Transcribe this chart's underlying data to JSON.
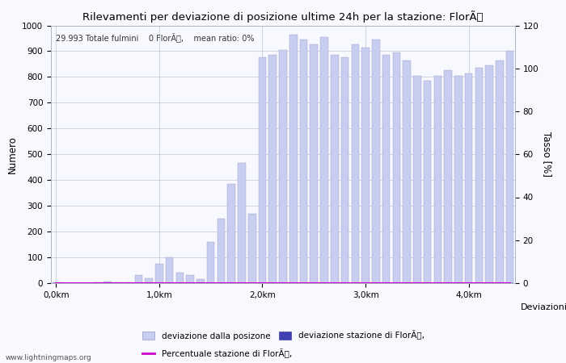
{
  "title": "Rilevamenti per deviazione di posizione ultime 24h per la stazione: FlorÃ",
  "subtitle": "29.993 Totale fulmini    0 FlorÃ,    mean ratio: 0%",
  "ylabel_left": "Numero",
  "ylabel_right": "Tasso [%]",
  "xlabel": "Deviazioni",
  "watermark": "www.lightningmaps.org",
  "ylim_left": [
    0,
    1000
  ],
  "ylim_right": [
    0,
    120
  ],
  "xtick_positions": [
    0,
    10,
    20,
    30,
    40
  ],
  "xtick_labels": [
    "0,0km",
    "1,0km",
    "2,0km",
    "3,0km",
    "4,0km"
  ],
  "ytick_left": [
    0,
    100,
    200,
    300,
    400,
    500,
    600,
    700,
    800,
    900,
    1000
  ],
  "ytick_right": [
    0,
    20,
    40,
    60,
    80,
    100,
    120
  ],
  "bg_color": "#f8f8ff",
  "bar_color": "#c8cef0",
  "bar_edge_color": "#9898c8",
  "station_bar_color": "#4040b0",
  "line_color": "#cc00cc",
  "bar_width": 0.75,
  "bar_values": [
    2,
    1,
    1,
    1,
    2,
    5,
    3,
    2,
    30,
    20,
    75,
    100,
    40,
    30,
    15,
    160,
    250,
    385,
    465,
    270,
    875,
    885,
    905,
    965,
    945,
    925,
    955,
    885,
    875,
    925,
    915,
    945,
    885,
    895,
    865,
    805,
    785,
    805,
    825,
    805,
    815,
    835,
    845,
    865,
    900
  ],
  "station_bar_values": [
    0,
    0,
    0,
    0,
    0,
    0,
    0,
    0,
    0,
    0,
    0,
    0,
    0,
    0,
    0,
    0,
    0,
    0,
    0,
    0,
    0,
    0,
    0,
    0,
    0,
    0,
    0,
    0,
    0,
    0,
    0,
    0,
    0,
    0,
    0,
    0,
    0,
    0,
    0,
    0,
    0,
    0,
    0,
    0,
    0
  ],
  "percentage_values": [
    0,
    0,
    0,
    0,
    0,
    0,
    0,
    0,
    0,
    0,
    0,
    0,
    0,
    0,
    0,
    0,
    0,
    0,
    0,
    0,
    0,
    0,
    0,
    0,
    0,
    0,
    0,
    0,
    0,
    0,
    0,
    0,
    0,
    0,
    0,
    0,
    0,
    0,
    0,
    0,
    0,
    0,
    0,
    0,
    0
  ],
  "legend_label_bar": "deviazione dalla posizone",
  "legend_label_station": "deviazione stazione di FlorÃ,",
  "legend_label_line": "Percentuale stazione di FlorÃ,"
}
